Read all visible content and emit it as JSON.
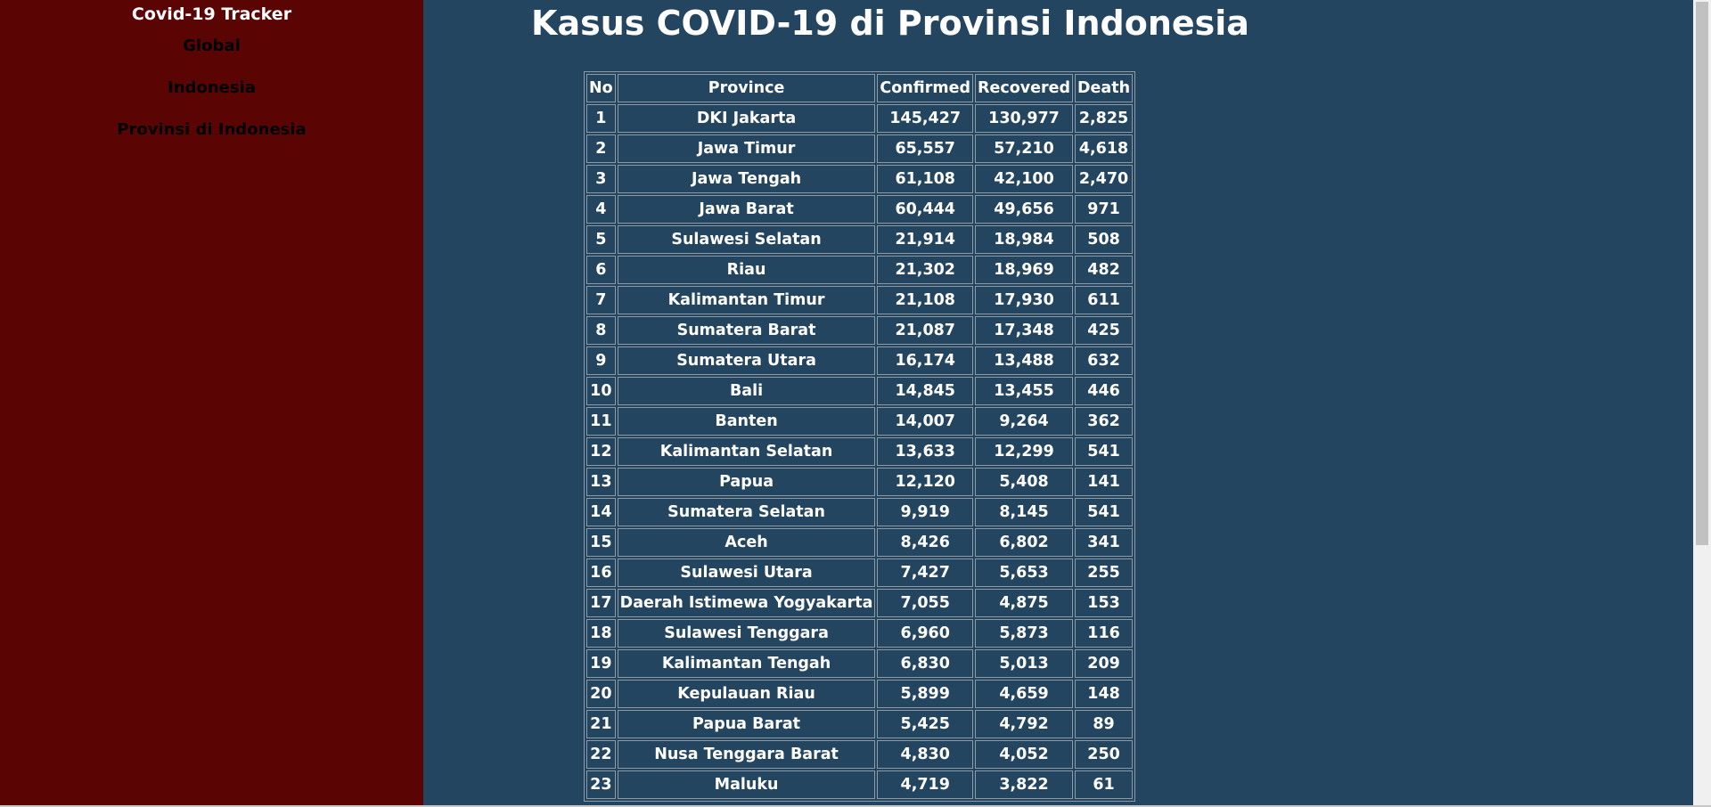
{
  "sidebar": {
    "brand": "Covid-19 Tracker",
    "links": [
      "Global",
      "Indonesia",
      "Provinsi di Indonesia"
    ]
  },
  "main": {
    "title": "Kasus COVID-19 di Provinsi Indonesia"
  },
  "table": {
    "headers": [
      "No",
      "Province",
      "Confirmed",
      "Recovered",
      "Death"
    ],
    "rows": [
      [
        "1",
        "DKI Jakarta",
        "145,427",
        "130,977",
        "2,825"
      ],
      [
        "2",
        "Jawa Timur",
        "65,557",
        "57,210",
        "4,618"
      ],
      [
        "3",
        "Jawa Tengah",
        "61,108",
        "42,100",
        "2,470"
      ],
      [
        "4",
        "Jawa Barat",
        "60,444",
        "49,656",
        "971"
      ],
      [
        "5",
        "Sulawesi Selatan",
        "21,914",
        "18,984",
        "508"
      ],
      [
        "6",
        "Riau",
        "21,302",
        "18,969",
        "482"
      ],
      [
        "7",
        "Kalimantan Timur",
        "21,108",
        "17,930",
        "611"
      ],
      [
        "8",
        "Sumatera Barat",
        "21,087",
        "17,348",
        "425"
      ],
      [
        "9",
        "Sumatera Utara",
        "16,174",
        "13,488",
        "632"
      ],
      [
        "10",
        "Bali",
        "14,845",
        "13,455",
        "446"
      ],
      [
        "11",
        "Banten",
        "14,007",
        "9,264",
        "362"
      ],
      [
        "12",
        "Kalimantan Selatan",
        "13,633",
        "12,299",
        "541"
      ],
      [
        "13",
        "Papua",
        "12,120",
        "5,408",
        "141"
      ],
      [
        "14",
        "Sumatera Selatan",
        "9,919",
        "8,145",
        "541"
      ],
      [
        "15",
        "Aceh",
        "8,426",
        "6,802",
        "341"
      ],
      [
        "16",
        "Sulawesi Utara",
        "7,427",
        "5,653",
        "255"
      ],
      [
        "17",
        "Daerah Istimewa Yogyakarta",
        "7,055",
        "4,875",
        "153"
      ],
      [
        "18",
        "Sulawesi Tenggara",
        "6,960",
        "5,873",
        "116"
      ],
      [
        "19",
        "Kalimantan Tengah",
        "6,830",
        "5,013",
        "209"
      ],
      [
        "20",
        "Kepulauan Riau",
        "5,899",
        "4,659",
        "148"
      ],
      [
        "21",
        "Papua Barat",
        "5,425",
        "4,792",
        "89"
      ],
      [
        "22",
        "Nusa Tenggara Barat",
        "4,830",
        "4,052",
        "250"
      ],
      [
        "23",
        "Maluku",
        "4,719",
        "3,822",
        "61"
      ]
    ]
  },
  "colors": {
    "sidebar_bg": "#5a0404",
    "main_bg": "#244560",
    "text": "#ffffff",
    "nav_text": "#000000"
  }
}
